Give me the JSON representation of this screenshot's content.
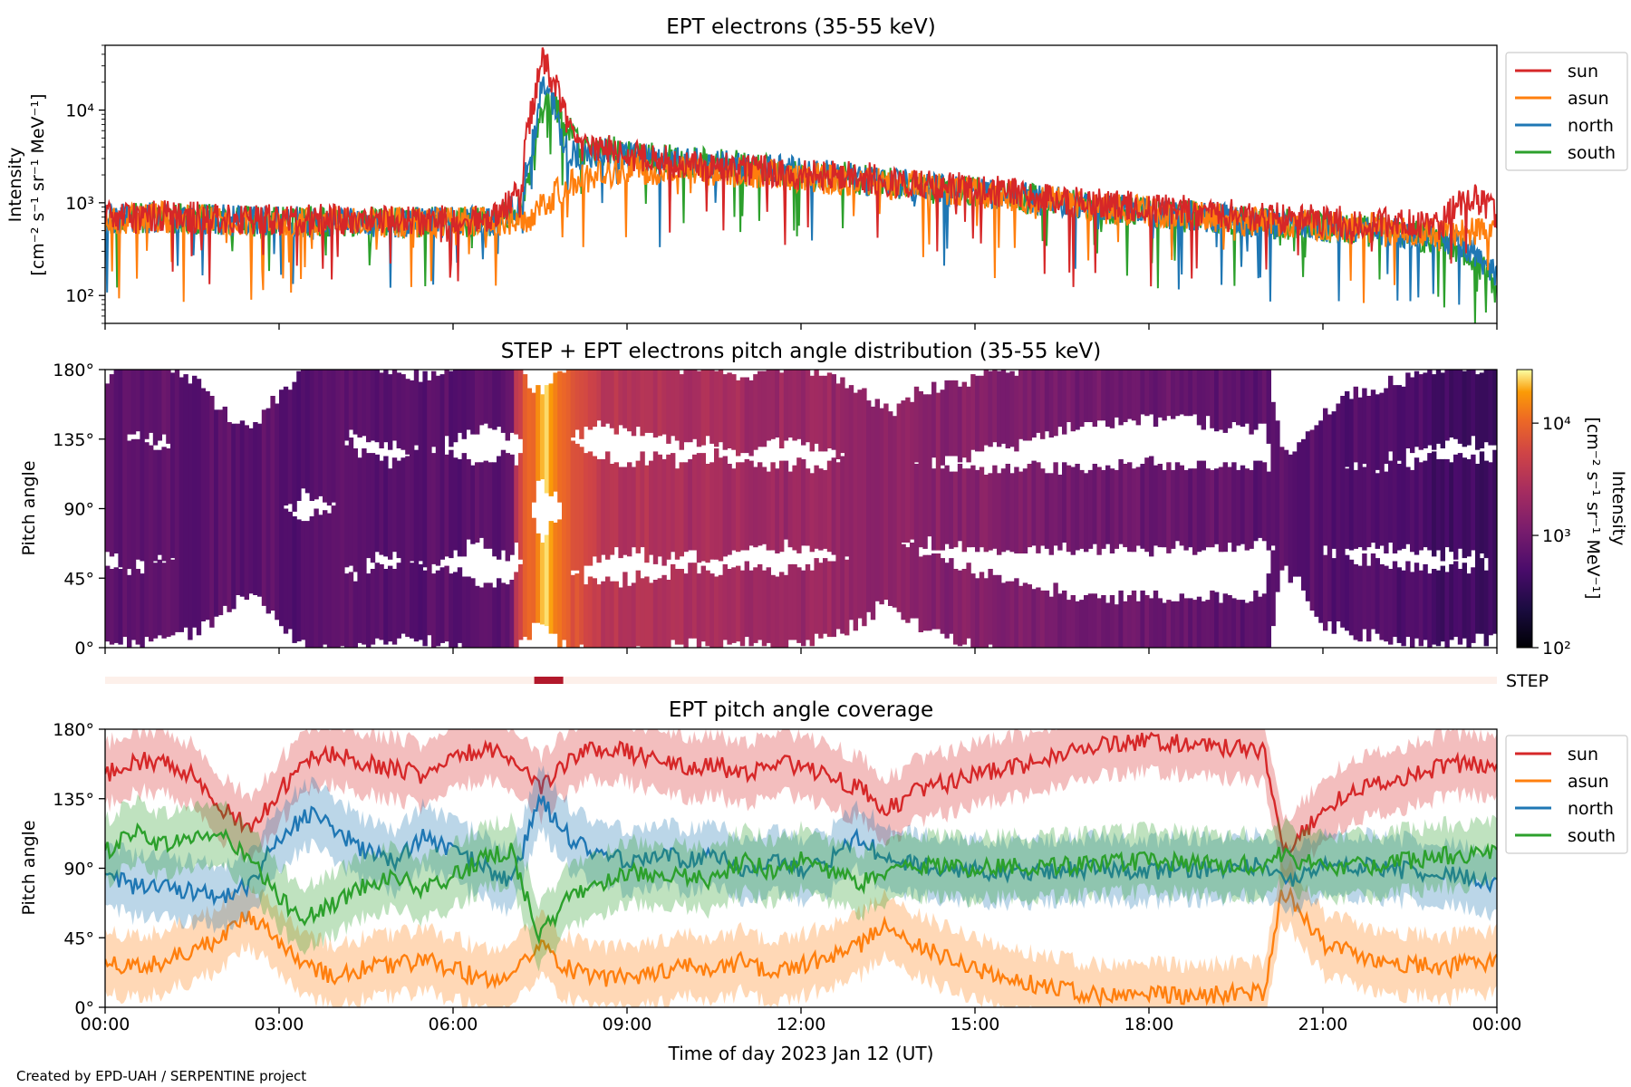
{
  "figure": {
    "footer": "Created by EPD-UAH / SERPENTINE project",
    "xlabel": "Time of day 2023 Jan 12 (UT)",
    "xticks": [
      "00:00",
      "03:00",
      "06:00",
      "09:00",
      "12:00",
      "15:00",
      "18:00",
      "21:00",
      "00:00"
    ]
  },
  "colors": {
    "sun": "#d62728",
    "asun": "#ff7f0e",
    "north": "#1f77b4",
    "south": "#2ca02c",
    "step": "#b2182b",
    "step_bg": "#fdf0ea"
  },
  "chart_data": [
    {
      "type": "line",
      "title": "EPT electrons (35-55 keV)",
      "ylabel": "Intensity",
      "yunit": "[cm⁻² s⁻¹ sr⁻¹ MeV⁻¹]",
      "yscale": "log",
      "ylim": [
        50,
        50000
      ],
      "yticks": [
        "10²",
        "10³",
        "10⁴"
      ],
      "xlim_hours": [
        0,
        24
      ],
      "legend": "outside-right",
      "x_hours": [
        0,
        1,
        2,
        3,
        4,
        5,
        6,
        6.8,
        7.2,
        7.4,
        7.55,
        7.7,
        7.9,
        8.2,
        8.6,
        9,
        10,
        11,
        12,
        13,
        14,
        15,
        16,
        17,
        18,
        19,
        20,
        21,
        22,
        23,
        23.6,
        24
      ],
      "series": [
        {
          "name": "sun",
          "values": [
            700,
            720,
            680,
            650,
            660,
            640,
            650,
            700,
            1500,
            12000,
            35000,
            22000,
            9000,
            4000,
            4200,
            3300,
            2600,
            2300,
            2000,
            1900,
            1600,
            1400,
            1200,
            1000,
            900,
            800,
            700,
            650,
            600,
            560,
            1200,
            700
          ]
        },
        {
          "name": "asun",
          "values": [
            650,
            700,
            650,
            620,
            630,
            620,
            620,
            620,
            640,
            700,
            900,
            1100,
            1400,
            1800,
            2100,
            2300,
            2300,
            2100,
            1900,
            1700,
            1500,
            1300,
            1100,
            900,
            800,
            700,
            600,
            560,
            520,
            480,
            500,
            480
          ]
        },
        {
          "name": "north",
          "values": [
            650,
            700,
            650,
            620,
            630,
            620,
            620,
            650,
            1000,
            5000,
            20000,
            12000,
            4000,
            3200,
            3500,
            3200,
            2700,
            2500,
            2100,
            1800,
            1500,
            1300,
            1100,
            900,
            800,
            700,
            600,
            560,
            500,
            420,
            300,
            150
          ]
        },
        {
          "name": "south",
          "values": [
            650,
            700,
            650,
            620,
            630,
            620,
            620,
            650,
            900,
            3000,
            10000,
            14000,
            7000,
            3600,
            3700,
            3300,
            2800,
            2500,
            2100,
            1800,
            1500,
            1300,
            1100,
            900,
            800,
            700,
            600,
            550,
            500,
            400,
            250,
            100
          ]
        }
      ]
    },
    {
      "type": "heatmap",
      "title": "STEP + EPT electrons pitch angle distribution (35-55 keV)",
      "ylabel": "Pitch angle",
      "yticks": [
        "0°",
        "45°",
        "90°",
        "135°",
        "180°"
      ],
      "ylim": [
        0,
        180
      ],
      "colorbar_label": "Intensity",
      "colorbar_unit": "[cm⁻² s⁻¹ sr⁻¹ MeV⁻¹]",
      "colorbar_ticks": [
        "10²",
        "10³",
        "10⁴"
      ],
      "colorbar_range": [
        100,
        30000
      ],
      "colorscale": "inferno",
      "x_hours": [
        0,
        1,
        2,
        3,
        4,
        5,
        6,
        7,
        7.4,
        7.6,
        7.9,
        8.5,
        9,
        10,
        11,
        12,
        13,
        14,
        15,
        16,
        17,
        18,
        19,
        20,
        21,
        22,
        23,
        24
      ],
      "intensity": [
        650,
        700,
        650,
        620,
        630,
        620,
        620,
        650,
        12000,
        25000,
        9000,
        3800,
        3300,
        2600,
        2300,
        2000,
        1800,
        1500,
        1300,
        1100,
        950,
        850,
        750,
        650,
        600,
        550,
        450,
        400
      ],
      "step_bar": {
        "label": "STEP",
        "active_hours": [
          7.4,
          7.9
        ]
      }
    },
    {
      "type": "line",
      "title": "EPT pitch angle coverage",
      "ylabel": "Pitch angle",
      "yticks": [
        "0°",
        "45°",
        "90°",
        "135°",
        "180°"
      ],
      "ylim": [
        0,
        180
      ],
      "xlim_hours": [
        0,
        24
      ],
      "legend": "outside-right",
      "band_halfwidth_deg": 20,
      "x_hours": [
        0,
        0.5,
        1,
        1.5,
        2,
        2.5,
        3,
        3.5,
        4,
        4.5,
        5,
        5.5,
        6,
        6.5,
        7,
        7.5,
        8,
        8.5,
        9,
        9.5,
        10,
        10.5,
        11,
        11.5,
        12,
        12.5,
        13,
        13.5,
        14,
        15,
        16,
        17,
        18,
        19,
        20,
        20.3,
        20.6,
        21,
        21.5,
        22,
        22.5,
        23,
        23.5,
        24
      ],
      "series": [
        {
          "name": "sun",
          "values": [
            150,
            160,
            158,
            150,
            130,
            115,
            140,
            160,
            165,
            158,
            155,
            150,
            160,
            168,
            162,
            140,
            160,
            168,
            165,
            160,
            155,
            158,
            150,
            160,
            155,
            150,
            142,
            128,
            140,
            150,
            158,
            170,
            172,
            170,
            165,
            100,
            110,
            128,
            140,
            145,
            150,
            155,
            158,
            152
          ]
        },
        {
          "name": "asun",
          "values": [
            30,
            25,
            30,
            35,
            45,
            60,
            40,
            25,
            20,
            25,
            28,
            30,
            25,
            18,
            20,
            40,
            25,
            18,
            20,
            22,
            28,
            25,
            30,
            22,
            28,
            32,
            40,
            55,
            40,
            25,
            15,
            8,
            8,
            8,
            10,
            75,
            65,
            40,
            35,
            30,
            28,
            25,
            28,
            30
          ]
        },
        {
          "name": "north",
          "values": [
            85,
            78,
            80,
            75,
            72,
            80,
            110,
            125,
            115,
            100,
            95,
            110,
            100,
            92,
            80,
            135,
            110,
            100,
            95,
            100,
            95,
            100,
            90,
            95,
            88,
            95,
            110,
            95,
            92,
            88,
            88,
            90,
            88,
            90,
            92,
            80,
            85,
            92,
            92,
            90,
            88,
            85,
            85,
            80
          ]
        },
        {
          "name": "south",
          "values": [
            100,
            115,
            105,
            110,
            112,
            95,
            70,
            58,
            68,
            80,
            85,
            75,
            85,
            95,
            102,
            45,
            72,
            80,
            88,
            82,
            85,
            82,
            95,
            88,
            95,
            88,
            80,
            88,
            92,
            90,
            92,
            92,
            95,
            92,
            92,
            100,
            95,
            90,
            92,
            92,
            95,
            98,
            98,
            100
          ]
        }
      ]
    }
  ]
}
